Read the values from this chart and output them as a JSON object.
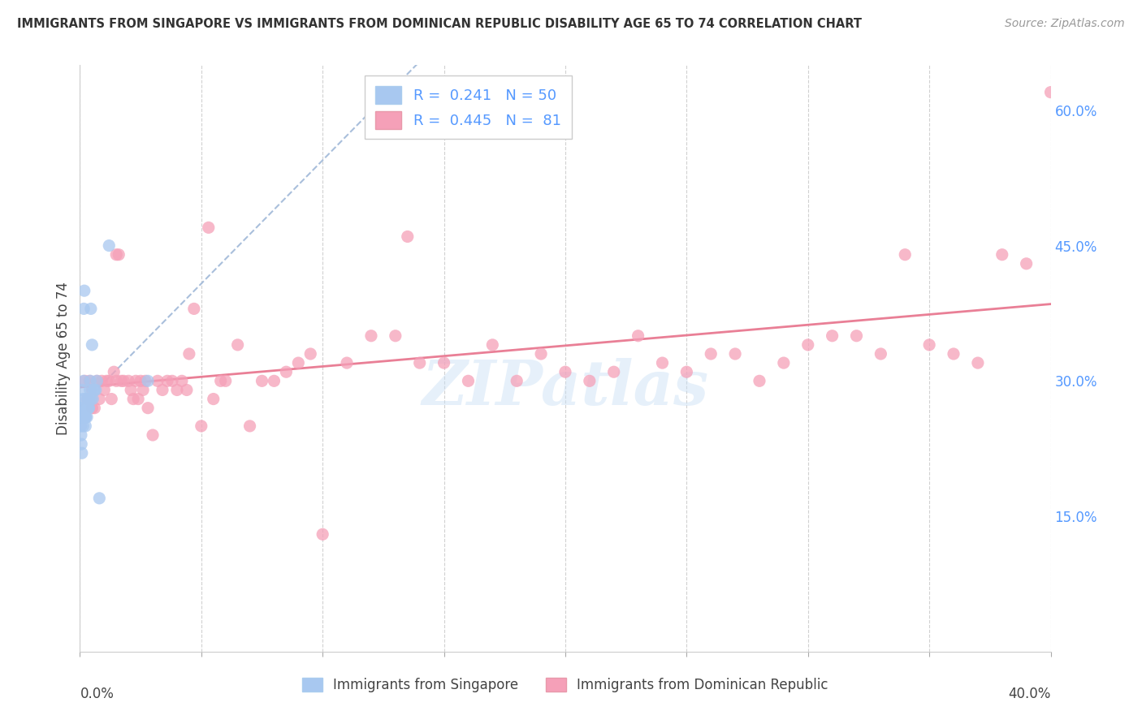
{
  "title": "IMMIGRANTS FROM SINGAPORE VS IMMIGRANTS FROM DOMINICAN REPUBLIC DISABILITY AGE 65 TO 74 CORRELATION CHART",
  "source": "Source: ZipAtlas.com",
  "ylabel": "Disability Age 65 to 74",
  "right_yticklabels": [
    "",
    "15.0%",
    "30.0%",
    "45.0%",
    "60.0%"
  ],
  "right_yticks": [
    0.0,
    0.15,
    0.3,
    0.45,
    0.6
  ],
  "xlim": [
    0.0,
    0.4
  ],
  "ylim": [
    0.0,
    0.65
  ],
  "R_singapore": 0.241,
  "N_singapore": 50,
  "R_dominican": 0.445,
  "N_dominican": 81,
  "color_singapore": "#a8c8f0",
  "color_dominican": "#f5a0b8",
  "trendline_singapore_color": "#a0b8d8",
  "trendline_dominican_color": "#e87890",
  "watermark": "ZIPatlas",
  "legend_label_singapore": "Immigrants from Singapore",
  "legend_label_dominican": "Immigrants from Dominican Republic",
  "singapore_x": [
    0.0002,
    0.0003,
    0.0004,
    0.0005,
    0.0006,
    0.0008,
    0.001,
    0.001,
    0.0012,
    0.0013,
    0.0015,
    0.0015,
    0.0016,
    0.0018,
    0.0019,
    0.002,
    0.0021,
    0.0022,
    0.0023,
    0.0023,
    0.0024,
    0.0025,
    0.0026,
    0.0027,
    0.0028,
    0.0028,
    0.0029,
    0.003,
    0.0031,
    0.0032,
    0.0033,
    0.0034,
    0.0035,
    0.0036,
    0.0037,
    0.0038,
    0.004,
    0.0041,
    0.0043,
    0.0045,
    0.0047,
    0.005,
    0.0053,
    0.0056,
    0.006,
    0.0065,
    0.007,
    0.008,
    0.012,
    0.028
  ],
  "singapore_y": [
    0.27,
    0.26,
    0.25,
    0.24,
    0.23,
    0.22,
    0.29,
    0.26,
    0.28,
    0.25,
    0.3,
    0.27,
    0.38,
    0.4,
    0.26,
    0.27,
    0.28,
    0.26,
    0.26,
    0.25,
    0.26,
    0.27,
    0.27,
    0.27,
    0.27,
    0.27,
    0.26,
    0.27,
    0.27,
    0.27,
    0.28,
    0.27,
    0.27,
    0.28,
    0.27,
    0.28,
    0.28,
    0.29,
    0.3,
    0.38,
    0.28,
    0.34,
    0.28,
    0.29,
    0.29,
    0.29,
    0.3,
    0.17,
    0.45,
    0.3
  ],
  "dominican_x": [
    0.002,
    0.003,
    0.004,
    0.005,
    0.006,
    0.007,
    0.008,
    0.009,
    0.01,
    0.011,
    0.012,
    0.013,
    0.014,
    0.015,
    0.016,
    0.017,
    0.018,
    0.02,
    0.021,
    0.022,
    0.023,
    0.024,
    0.025,
    0.026,
    0.027,
    0.028,
    0.03,
    0.032,
    0.034,
    0.036,
    0.038,
    0.04,
    0.042,
    0.045,
    0.047,
    0.05,
    0.053,
    0.055,
    0.058,
    0.06,
    0.065,
    0.07,
    0.075,
    0.08,
    0.085,
    0.09,
    0.095,
    0.1,
    0.11,
    0.12,
    0.13,
    0.14,
    0.15,
    0.16,
    0.17,
    0.18,
    0.19,
    0.2,
    0.21,
    0.22,
    0.23,
    0.24,
    0.25,
    0.26,
    0.27,
    0.28,
    0.29,
    0.3,
    0.31,
    0.32,
    0.33,
    0.34,
    0.35,
    0.36,
    0.37,
    0.38,
    0.39,
    0.4,
    0.005,
    0.135,
    0.015,
    0.044
  ],
  "dominican_y": [
    0.3,
    0.28,
    0.3,
    0.29,
    0.27,
    0.3,
    0.28,
    0.3,
    0.29,
    0.3,
    0.3,
    0.28,
    0.31,
    0.44,
    0.44,
    0.3,
    0.3,
    0.3,
    0.29,
    0.28,
    0.3,
    0.28,
    0.3,
    0.29,
    0.3,
    0.27,
    0.24,
    0.3,
    0.29,
    0.3,
    0.3,
    0.29,
    0.3,
    0.33,
    0.38,
    0.25,
    0.47,
    0.28,
    0.3,
    0.3,
    0.34,
    0.25,
    0.3,
    0.3,
    0.31,
    0.32,
    0.33,
    0.13,
    0.32,
    0.35,
    0.35,
    0.32,
    0.32,
    0.3,
    0.34,
    0.3,
    0.33,
    0.31,
    0.3,
    0.31,
    0.35,
    0.32,
    0.31,
    0.33,
    0.33,
    0.3,
    0.32,
    0.34,
    0.35,
    0.35,
    0.33,
    0.44,
    0.34,
    0.33,
    0.32,
    0.44,
    0.43,
    0.62,
    0.27,
    0.46,
    0.3,
    0.29
  ]
}
